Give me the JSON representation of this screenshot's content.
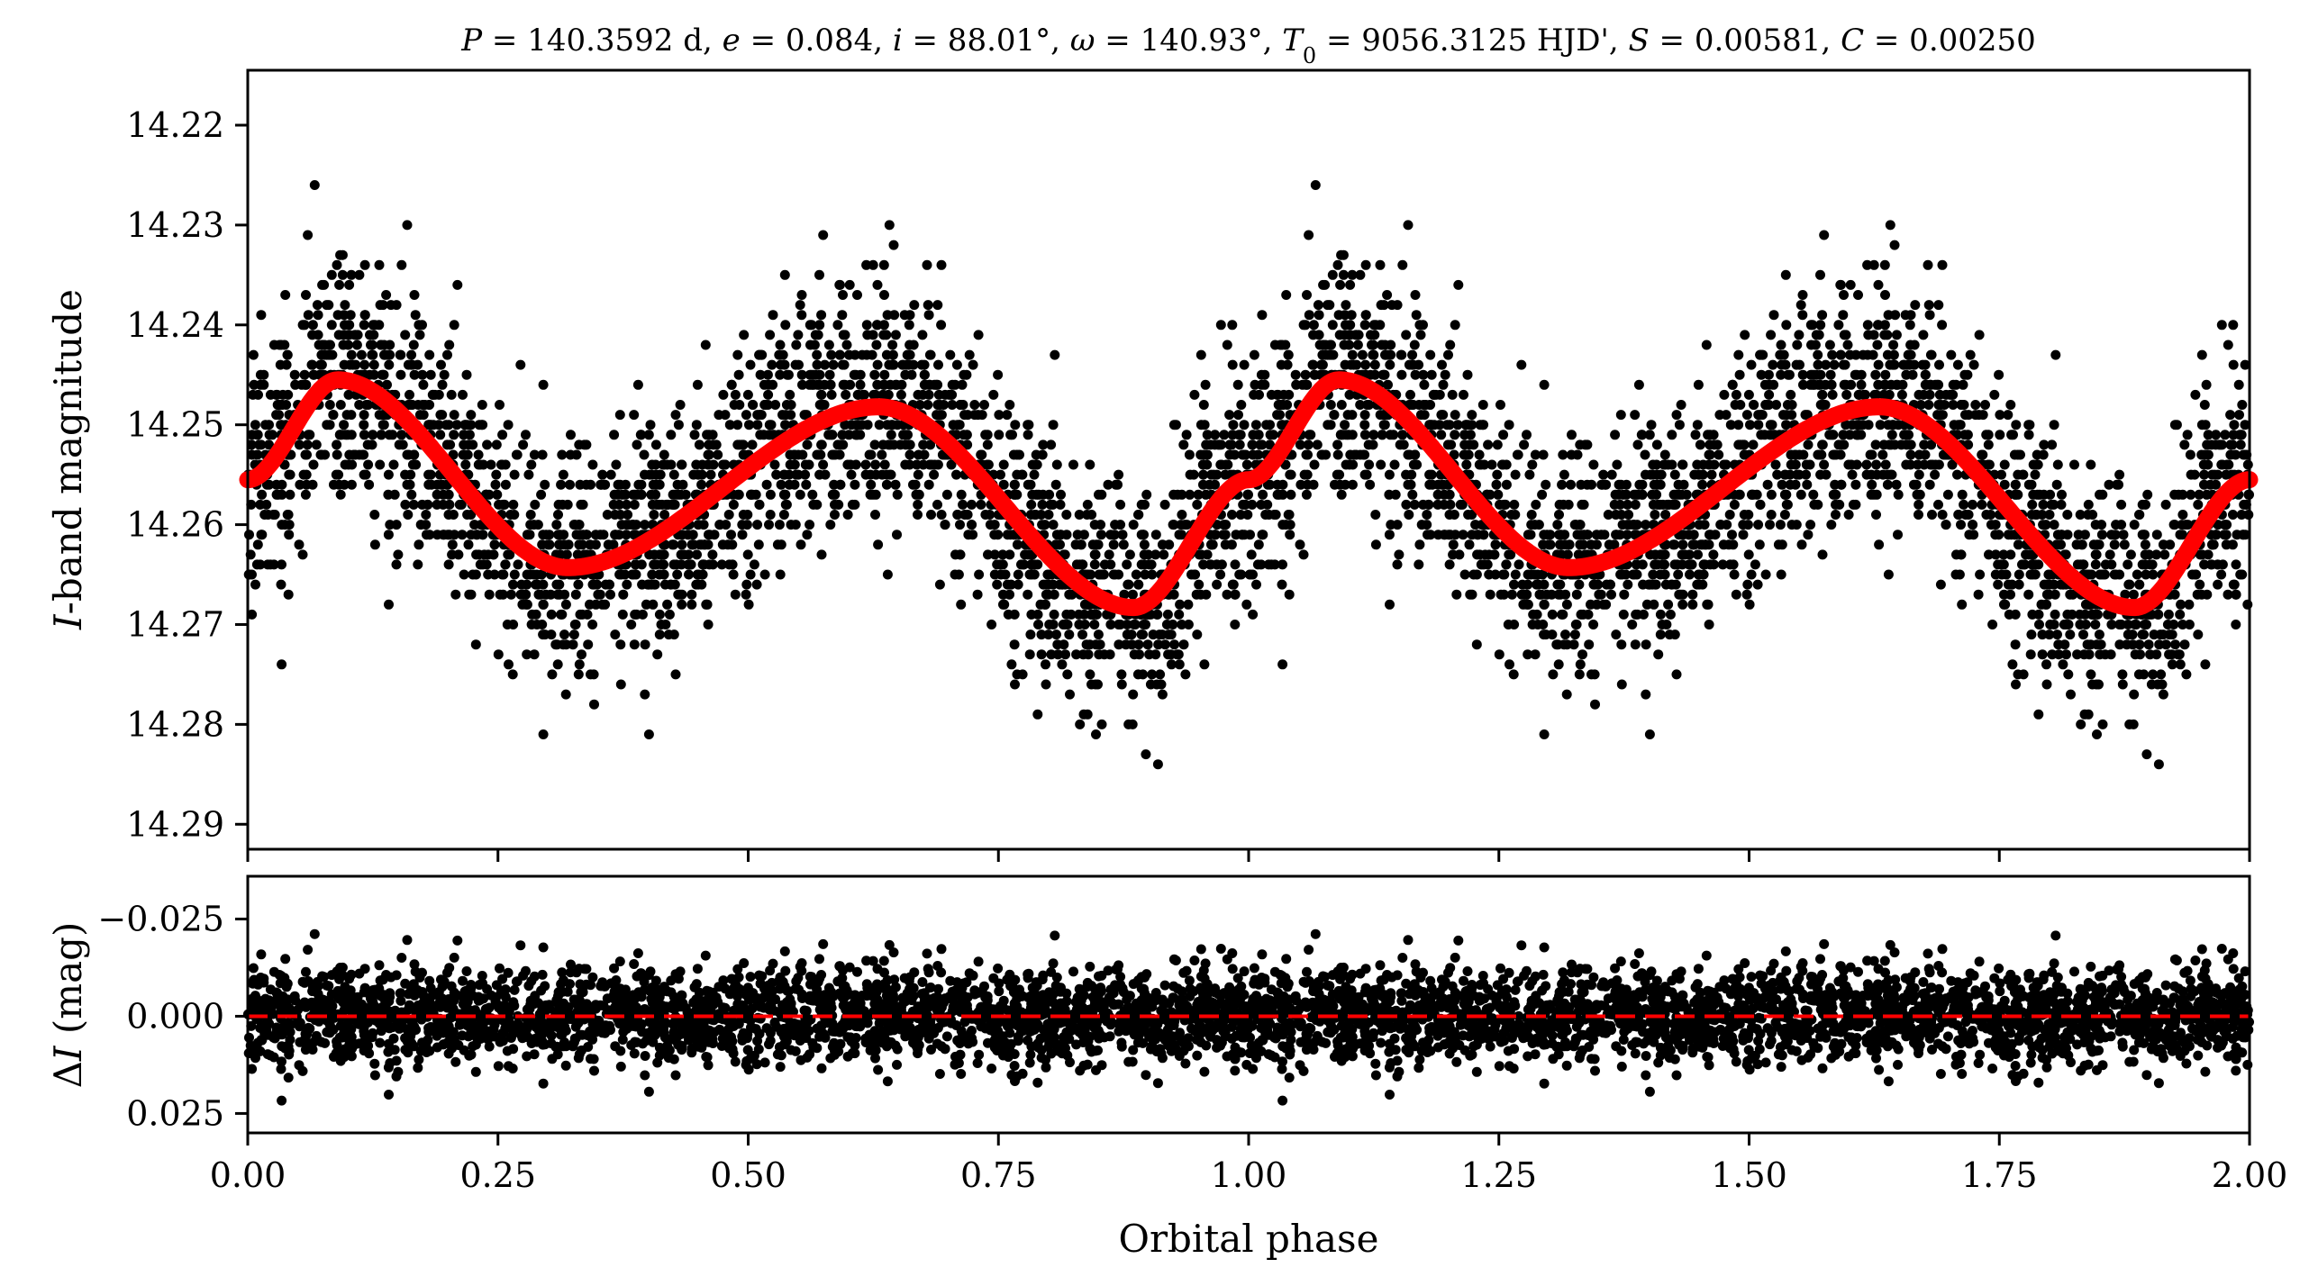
{
  "chart_data": [
    {
      "type": "scatter",
      "panel": "light curve",
      "title_parts": [
        {
          "text": "P",
          "italic": true
        },
        {
          "text": " = 140.3592 d, ",
          "italic": false
        },
        {
          "text": "e",
          "italic": true
        },
        {
          "text": " = 0.084, ",
          "italic": false
        },
        {
          "text": "i",
          "italic": true
        },
        {
          "text": " = 88.01°, ",
          "italic": false
        },
        {
          "text": "ω",
          "italic": true
        },
        {
          "text": " = 140.93°, ",
          "italic": false
        },
        {
          "text": "T",
          "italic": true
        },
        {
          "text": "0",
          "italic": false,
          "subscript": true
        },
        {
          "text": " = 9056.3125 HJD', ",
          "italic": false
        },
        {
          "text": "S",
          "italic": true
        },
        {
          "text": " = 0.00581, ",
          "italic": false
        },
        {
          "text": "C",
          "italic": true
        },
        {
          "text": " = 0.00250",
          "italic": false
        }
      ],
      "ylabel_parts": [
        {
          "text": "I",
          "italic": true
        },
        {
          "text": "-band magnitude",
          "italic": false
        }
      ],
      "xlim": [
        0.0,
        2.0
      ],
      "ylim": [
        14.2925,
        14.2145
      ],
      "y_inverted": true,
      "yticks": [
        14.22,
        14.23,
        14.24,
        14.25,
        14.26,
        14.27,
        14.28,
        14.29
      ],
      "ytick_labels": [
        "14.22",
        "14.23",
        "14.24",
        "14.25",
        "14.26",
        "14.27",
        "14.28",
        "14.29"
      ],
      "xticks": [
        0.0,
        0.25,
        0.5,
        0.75,
        1.0,
        1.25,
        1.5,
        1.75,
        2.0
      ],
      "x_tick_labels_shown": false,
      "grid": false,
      "series": [
        {
          "kind": "scatter",
          "color": "#000000",
          "description_note": "observed I-band photometry, repeated over two phase cycles",
          "points_approx_count_per_cycle": 2400
        },
        {
          "kind": "model-line",
          "color": "#ff0000",
          "key_points": {
            "x": [
              0.0,
              0.09,
              0.32,
              0.63,
              0.885,
              1.0,
              1.09,
              1.32,
              1.63,
              1.885,
              2.0
            ],
            "y": [
              14.2555,
              14.2455,
              14.2643,
              14.2482,
              14.2683,
              14.2555,
              14.2455,
              14.2643,
              14.2482,
              14.2683,
              14.2555
            ]
          }
        }
      ]
    },
    {
      "type": "scatter",
      "panel": "residuals",
      "ylabel_parts": [
        {
          "text": "Δ",
          "italic": false
        },
        {
          "text": "I",
          "italic": true
        },
        {
          "text": " (mag)",
          "italic": false
        }
      ],
      "xlabel": "Orbital phase",
      "xlim": [
        0.0,
        2.0
      ],
      "ylim": [
        0.03,
        -0.036
      ],
      "y_inverted": true,
      "yticks": [
        -0.025,
        0.0,
        0.025
      ],
      "ytick_labels": [
        "−0.025",
        "0.000",
        "0.025"
      ],
      "xticks": [
        0.0,
        0.25,
        0.5,
        0.75,
        1.0,
        1.25,
        1.5,
        1.75,
        2.0
      ],
      "xtick_labels": [
        "0.00",
        "0.25",
        "0.50",
        "0.75",
        "1.00",
        "1.25",
        "1.50",
        "1.75",
        "2.00"
      ],
      "grid": false,
      "series": [
        {
          "kind": "scatter",
          "color": "#000000",
          "residual_std_approx": 0.006
        },
        {
          "kind": "reference-line",
          "color": "#ff0000",
          "y": 0.0,
          "style": "dashed"
        }
      ]
    }
  ]
}
